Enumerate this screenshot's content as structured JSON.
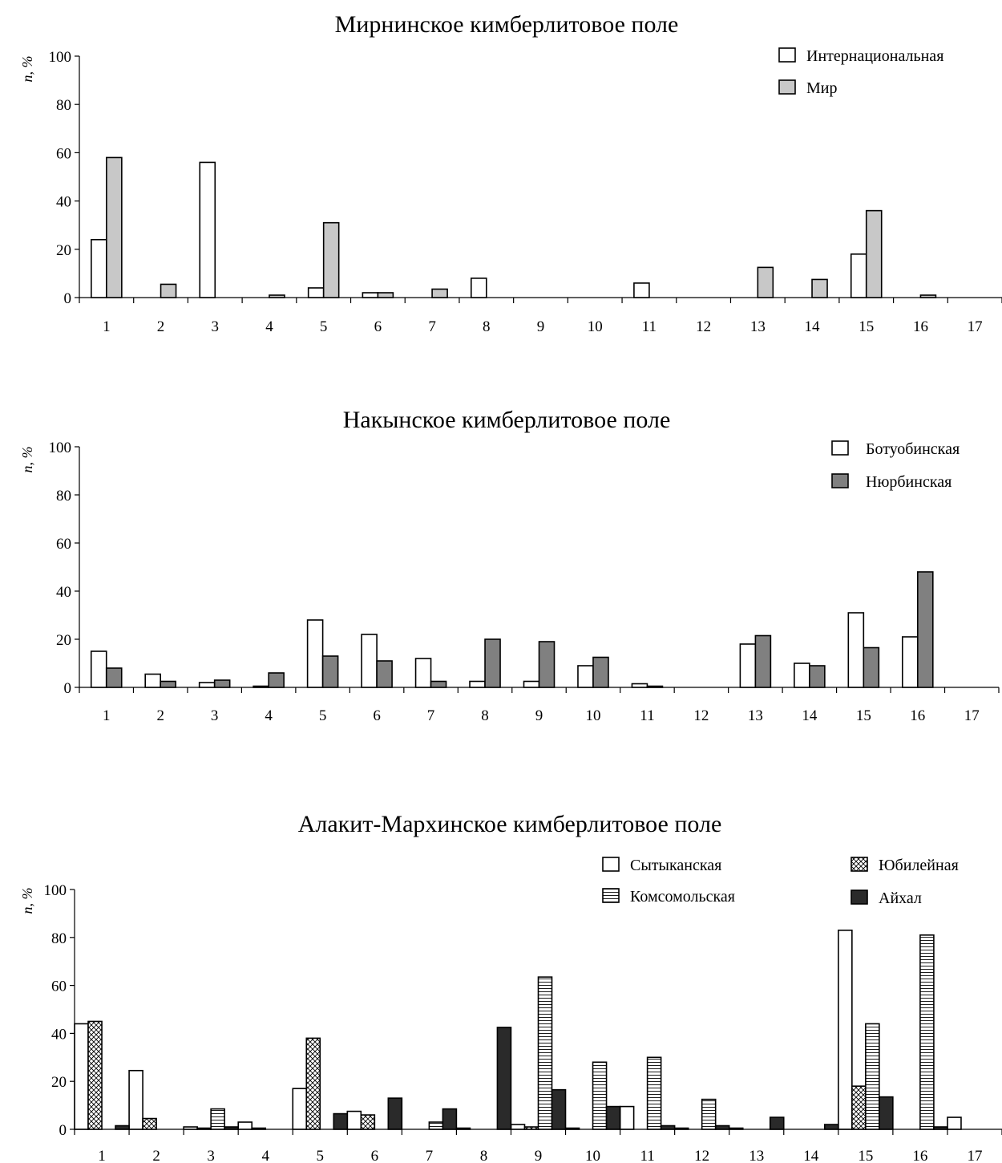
{
  "patterns": {
    "white": "#ffffff",
    "lightgray": "#c8c8c8",
    "gray": "#808080",
    "black": "#2a2a2a",
    "crosshatch": "crosshatch",
    "hstripes": "hstripes"
  },
  "chart_data": [
    {
      "type": "bar",
      "title": "Мирнинское кимберлитовое поле",
      "ylabel": "n, %",
      "ylim": [
        0,
        100
      ],
      "yticks": [
        "0",
        "20",
        "40",
        "60",
        "80",
        "100"
      ],
      "categories": [
        "1",
        "2",
        "3",
        "4",
        "5",
        "6",
        "7",
        "8",
        "9",
        "10",
        "11",
        "12",
        "13",
        "14",
        "15",
        "16",
        "17"
      ],
      "legend_position": "top-right",
      "series": [
        {
          "name": "Интернациональная",
          "pattern": "white",
          "values": [
            24,
            0,
            56,
            0,
            4,
            2,
            0,
            8,
            0,
            0,
            6,
            0,
            0,
            0,
            18,
            0,
            0
          ]
        },
        {
          "name": "Мир",
          "pattern": "lightgray",
          "values": [
            58,
            5.5,
            0,
            1,
            31,
            2,
            3.5,
            0,
            0,
            0,
            0,
            0,
            12.5,
            7.5,
            36,
            1,
            0
          ]
        }
      ]
    },
    {
      "type": "bar",
      "title": "Накынское кимберлитовое поле",
      "ylabel": "n, %",
      "ylim": [
        0,
        100
      ],
      "yticks": [
        "0",
        "20",
        "40",
        "60",
        "80",
        "100"
      ],
      "categories": [
        "1",
        "2",
        "3",
        "4",
        "5",
        "6",
        "7",
        "8",
        "9",
        "10",
        "11",
        "12",
        "13",
        "14",
        "15",
        "16",
        "17"
      ],
      "legend_position": "top-right",
      "series": [
        {
          "name": "Ботуобинская",
          "pattern": "white",
          "values": [
            15,
            5.5,
            2,
            0.5,
            28,
            22,
            12,
            2.5,
            2.5,
            9,
            1.5,
            0,
            18,
            10,
            31,
            21,
            0
          ]
        },
        {
          "name": "Нюрбинская",
          "pattern": "gray",
          "values": [
            8,
            2.5,
            3,
            6,
            13,
            11,
            2.5,
            20,
            19,
            12.5,
            0.5,
            0,
            21.5,
            9,
            16.5,
            48,
            0
          ]
        }
      ]
    },
    {
      "type": "bar",
      "title": "Алакит-Мархинское кимберлитовое поле",
      "ylabel": "n, %",
      "ylim": [
        0,
        100
      ],
      "yticks": [
        "0",
        "20",
        "40",
        "60",
        "80",
        "100"
      ],
      "categories": [
        "1",
        "2",
        "3",
        "4",
        "5",
        "6",
        "7",
        "8",
        "9",
        "10",
        "11",
        "12",
        "13",
        "14",
        "15",
        "16",
        "17"
      ],
      "legend_position": "top-right",
      "series": [
        {
          "name": "Сытыканская",
          "pattern": "white",
          "values": [
            44,
            24.5,
            1,
            3,
            17,
            7.5,
            0,
            0.5,
            2,
            0.5,
            9.5,
            0.5,
            0.5,
            0,
            83,
            0,
            5
          ]
        },
        {
          "name": "Юбилейная",
          "pattern": "crosshatch",
          "values": [
            45,
            4.5,
            0.5,
            0.5,
            38,
            6,
            0,
            0,
            1,
            0,
            0,
            0,
            0,
            0,
            18,
            0,
            0
          ]
        },
        {
          "name": "Комсомольская",
          "pattern": "hstripes",
          "values": [
            0,
            0,
            8.5,
            0,
            0,
            0,
            3,
            0,
            63.5,
            28,
            30,
            12.5,
            0,
            0,
            44,
            81,
            0
          ]
        },
        {
          "name": "Айхал",
          "pattern": "black",
          "values": [
            1.5,
            0,
            1,
            0,
            6.5,
            13,
            8.5,
            42.5,
            16.5,
            9.5,
            1.5,
            1.5,
            5,
            2,
            13.5,
            1,
            0
          ]
        }
      ]
    }
  ]
}
